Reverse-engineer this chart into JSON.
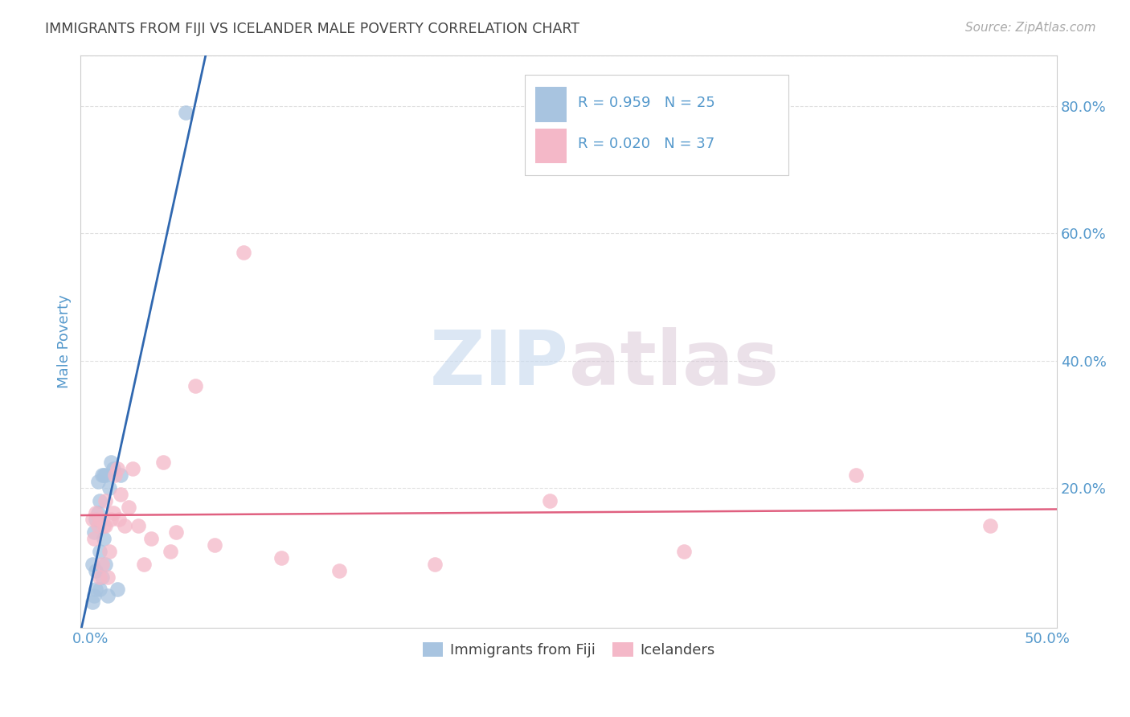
{
  "title": "IMMIGRANTS FROM FIJI VS ICELANDER MALE POVERTY CORRELATION CHART",
  "source": "Source: ZipAtlas.com",
  "ylabel": "Male Poverty",
  "x_tick_labels": [
    "0.0%",
    "",
    "",
    "",
    "",
    "50.0%"
  ],
  "x_tick_positions": [
    0.0,
    0.1,
    0.2,
    0.3,
    0.4,
    0.5
  ],
  "y_tick_labels": [
    "",
    "20.0%",
    "40.0%",
    "60.0%",
    "80.0%"
  ],
  "y_tick_positions": [
    0.0,
    0.2,
    0.4,
    0.6,
    0.8
  ],
  "xlim": [
    -0.005,
    0.505
  ],
  "ylim": [
    -0.02,
    0.88
  ],
  "fiji_R": 0.959,
  "fiji_N": 25,
  "iceland_R": 0.02,
  "iceland_N": 37,
  "fiji_color": "#a8c4e0",
  "iceland_color": "#f4b8c8",
  "fiji_line_color": "#3068b0",
  "iceland_line_color": "#e06080",
  "legend_fiji_label": "Immigrants from Fiji",
  "legend_iceland_label": "Icelanders",
  "watermark_zip": "ZIP",
  "watermark_atlas": "atlas",
  "fiji_x": [
    0.001,
    0.001,
    0.002,
    0.002,
    0.003,
    0.003,
    0.003,
    0.004,
    0.004,
    0.005,
    0.005,
    0.005,
    0.006,
    0.006,
    0.007,
    0.007,
    0.008,
    0.008,
    0.009,
    0.01,
    0.011,
    0.012,
    0.014,
    0.016,
    0.05
  ],
  "fiji_y": [
    0.02,
    0.08,
    0.13,
    0.03,
    0.04,
    0.15,
    0.07,
    0.16,
    0.21,
    0.1,
    0.18,
    0.04,
    0.22,
    0.06,
    0.22,
    0.12,
    0.22,
    0.08,
    0.03,
    0.2,
    0.24,
    0.23,
    0.04,
    0.22,
    0.79
  ],
  "iceland_x": [
    0.001,
    0.002,
    0.003,
    0.004,
    0.005,
    0.005,
    0.006,
    0.007,
    0.008,
    0.008,
    0.009,
    0.01,
    0.011,
    0.012,
    0.013,
    0.014,
    0.015,
    0.016,
    0.018,
    0.02,
    0.022,
    0.025,
    0.028,
    0.032,
    0.038,
    0.042,
    0.045,
    0.055,
    0.065,
    0.08,
    0.1,
    0.13,
    0.18,
    0.24,
    0.31,
    0.4,
    0.47
  ],
  "iceland_y": [
    0.15,
    0.12,
    0.16,
    0.14,
    0.06,
    0.15,
    0.08,
    0.14,
    0.18,
    0.14,
    0.06,
    0.1,
    0.15,
    0.16,
    0.22,
    0.23,
    0.15,
    0.19,
    0.14,
    0.17,
    0.23,
    0.14,
    0.08,
    0.12,
    0.24,
    0.1,
    0.13,
    0.36,
    0.11,
    0.57,
    0.09,
    0.07,
    0.08,
    0.18,
    0.1,
    0.22,
    0.14
  ],
  "background_color": "#ffffff",
  "grid_color": "#e0e0e0",
  "title_color": "#444444",
  "axis_label_color": "#5599cc",
  "tick_label_color": "#5599cc",
  "legend_box_color": "#ffffff",
  "legend_box_edge": "#dddddd"
}
